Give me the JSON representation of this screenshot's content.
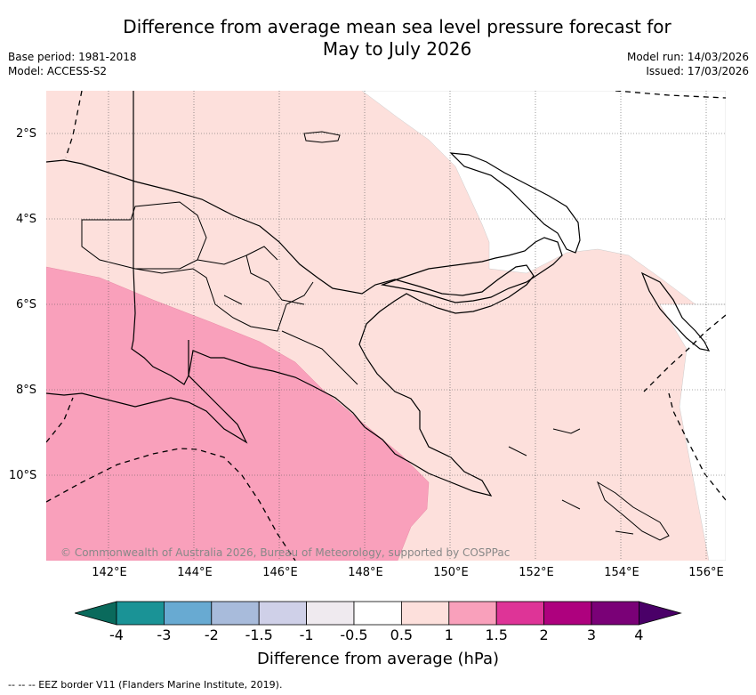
{
  "title_line1": "Difference from average mean sea level pressure forecast for",
  "title_line2": "May to July 2026",
  "base_period": "Base period: 1981-2018",
  "model": "Model: ACCESS-S2",
  "model_run": "Model run: 14/03/2026",
  "issued": "Issued: 17/03/2026",
  "copyright": "© Commonwealth of Australia 2026, Bureau of Meteorology, supported by COSPPac",
  "lat_labels": [
    "2°S",
    "4°S",
    "6°S",
    "8°S",
    "10°S"
  ],
  "lon_labels": [
    "142°E",
    "144°E",
    "146°E",
    "148°E",
    "150°E",
    "152°E",
    "154°E",
    "156°E"
  ],
  "colorbar": {
    "ticks": [
      "-4",
      "-3",
      "-2",
      "-1.5",
      "-1",
      "-0.5",
      "0.5",
      "1",
      "1.5",
      "2",
      "3",
      "4"
    ],
    "colors": [
      "#0a6a5c",
      "#1a9396",
      "#68aad2",
      "#a8bbdb",
      "#cfd0e8",
      "#efeaef",
      "#ffffff",
      "#fde0dc",
      "#f9a0bb",
      "#de3497",
      "#ae017e",
      "#7a0177",
      "#4a0068"
    ],
    "title": "Difference from average (hPa)"
  },
  "footer": "--  --  -- EEZ border V11 (Flanders Marine Institute, 2019).",
  "map_data": {
    "region": "Papua New Guinea",
    "anomaly_zones": [
      {
        "range": "0.5 to 1",
        "color": "#fde0dc"
      },
      {
        "range": "1 to 1.5",
        "color": "#f9a0bb"
      }
    ]
  }
}
